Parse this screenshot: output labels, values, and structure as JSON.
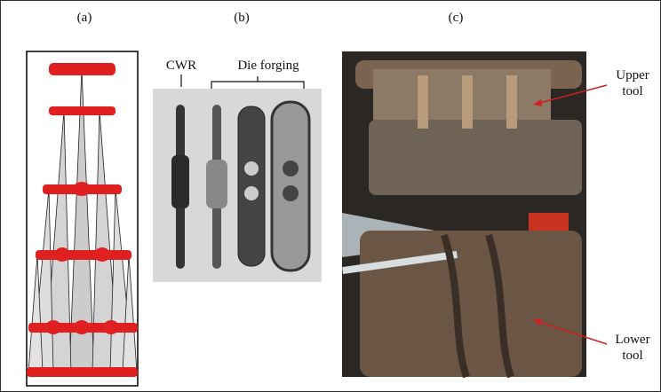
{
  "panels": {
    "a": {
      "label": "(a)"
    },
    "b": {
      "label": "(b)",
      "labels": {
        "cwr": "CWR",
        "die_forging": "Die forging"
      }
    },
    "c": {
      "label": "(c)",
      "labels": {
        "upper": "Upper tool",
        "lower": "Lower tool"
      }
    }
  }
}
